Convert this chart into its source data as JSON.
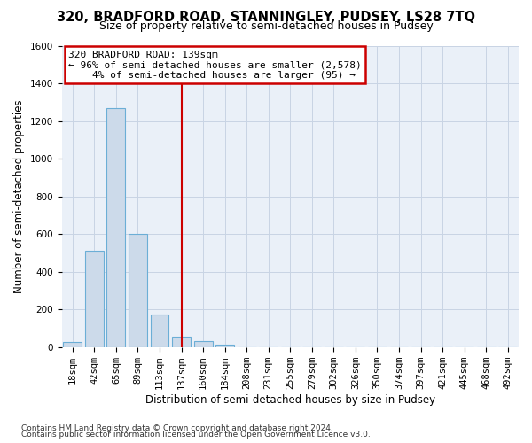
{
  "title": "320, BRADFORD ROAD, STANNINGLEY, PUDSEY, LS28 7TQ",
  "subtitle": "Size of property relative to semi-detached houses in Pudsey",
  "xlabel": "Distribution of semi-detached houses by size in Pudsey",
  "ylabel": "Number of semi-detached properties",
  "footnote1": "Contains HM Land Registry data © Crown copyright and database right 2024.",
  "footnote2": "Contains public sector information licensed under the Open Government Licence v3.0.",
  "bin_labels": [
    "18sqm",
    "42sqm",
    "65sqm",
    "89sqm",
    "113sqm",
    "137sqm",
    "160sqm",
    "184sqm",
    "208sqm",
    "231sqm",
    "255sqm",
    "279sqm",
    "302sqm",
    "326sqm",
    "350sqm",
    "374sqm",
    "397sqm",
    "421sqm",
    "445sqm",
    "468sqm",
    "492sqm"
  ],
  "bar_values": [
    25,
    510,
    1270,
    600,
    175,
    55,
    30,
    15,
    0,
    0,
    0,
    0,
    0,
    0,
    0,
    0,
    0,
    0,
    0,
    0,
    0
  ],
  "bar_color": "#ccdaea",
  "bar_edge_color": "#6baed6",
  "grid_color": "#c8d4e4",
  "background_color": "#eaf0f8",
  "vline_x_index": 5,
  "vline_color": "#cc0000",
  "annotation_line1": "320 BRADFORD ROAD: 139sqm",
  "annotation_line2": "← 96% of semi-detached houses are smaller (2,578)",
  "annotation_line3": "    4% of semi-detached houses are larger (95) →",
  "annotation_box_color": "#cc0000",
  "ylim_max": 1600,
  "yticks": [
    0,
    200,
    400,
    600,
    800,
    1000,
    1200,
    1400,
    1600
  ],
  "title_fontsize": 10.5,
  "subtitle_fontsize": 9,
  "ylabel_fontsize": 8.5,
  "xlabel_fontsize": 8.5,
  "tick_fontsize": 7.5,
  "annot_fontsize": 8,
  "footnote_fontsize": 6.5
}
